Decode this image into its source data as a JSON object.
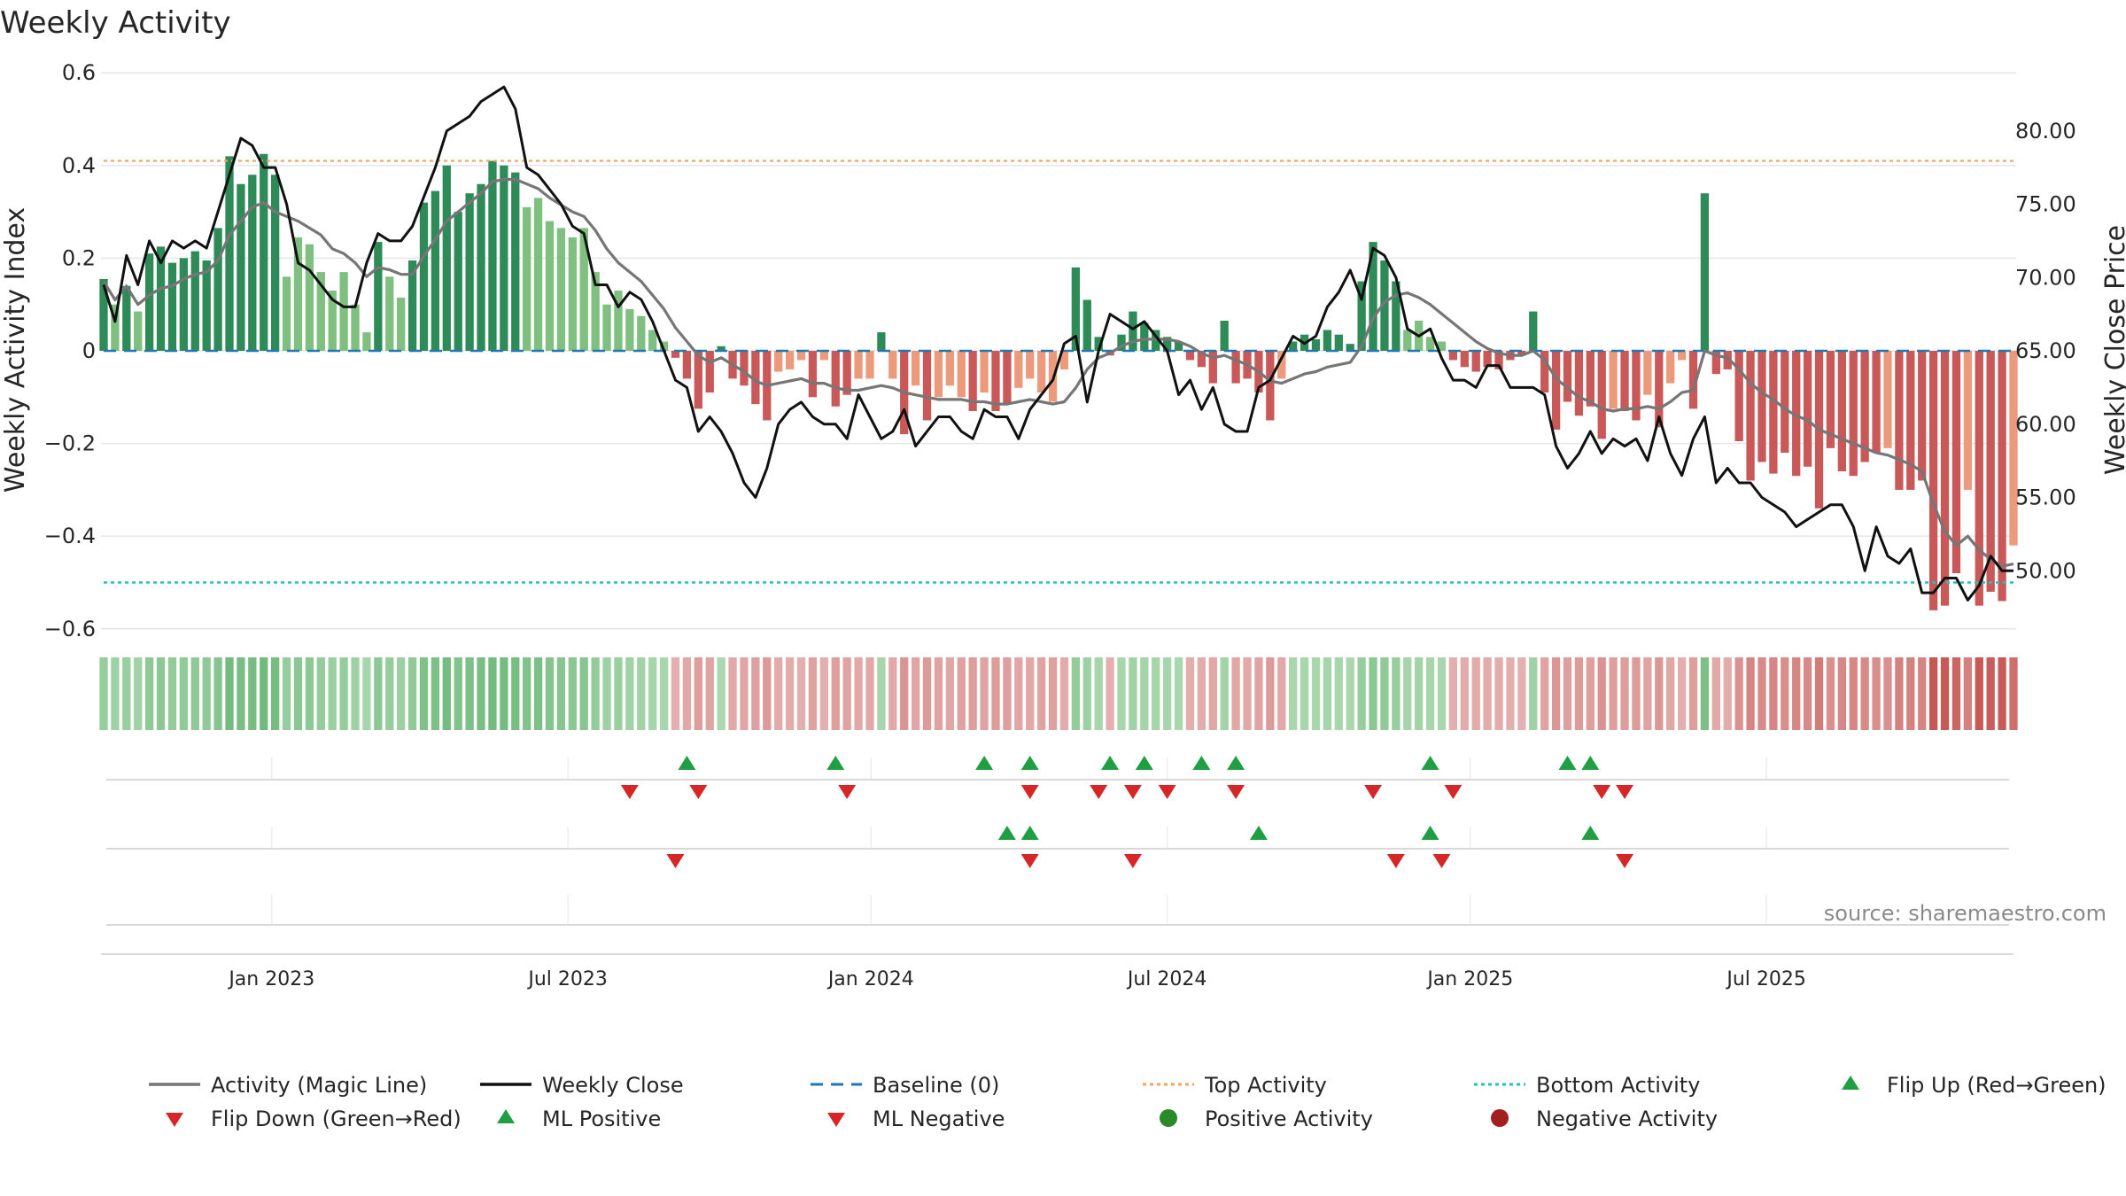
{
  "chart_data": {
    "type": "bar+line",
    "title": "Weekly Activity",
    "ylabel_left": "Weekly Activity Index",
    "ylabel_right": "Weekly Close Price",
    "ylim_left": [
      -0.66,
      0.62
    ],
    "ylim_right": [
      46.5,
      84.5
    ],
    "yticks_left": [
      0.6,
      0.4,
      0.2,
      0,
      -0.2,
      -0.4,
      -0.6
    ],
    "ytick_labels_left": [
      "0.6",
      "0.4",
      "0.2",
      "0",
      "−0.2",
      "−0.4",
      "−0.6"
    ],
    "yticks_right": [
      80,
      75,
      70,
      65,
      60,
      55,
      50
    ],
    "ytick_labels_right": [
      "80.00",
      "75.00",
      "70.00",
      "65.00",
      "60.00",
      "55.00",
      "50.00"
    ],
    "xticks": [
      {
        "label": "Jan 2023",
        "week": 14.7
      },
      {
        "label": "Jul 2023",
        "week": 40.6
      },
      {
        "label": "Jan 2024",
        "week": 67.1
      },
      {
        "label": "Jul 2024",
        "week": 93.0
      },
      {
        "label": "Jan 2025",
        "week": 119.5
      },
      {
        "label": "Jul 2025",
        "week": 145.4
      }
    ],
    "top_activity": 0.41,
    "bottom_activity": -0.5,
    "activity": [
      0.155,
      0.1,
      0.14,
      0.085,
      0.21,
      0.225,
      0.19,
      0.2,
      0.215,
      0.195,
      0.265,
      0.42,
      0.36,
      0.38,
      0.425,
      0.38,
      0.16,
      0.245,
      0.23,
      0.17,
      0.13,
      0.17,
      0.1,
      0.04,
      0.235,
      0.16,
      0.115,
      0.195,
      0.32,
      0.345,
      0.4,
      0.3,
      0.34,
      0.36,
      0.41,
      0.4,
      0.385,
      0.31,
      0.33,
      0.28,
      0.265,
      0.245,
      0.265,
      0.17,
      0.1,
      0.13,
      0.09,
      0.075,
      0.045,
      0.02,
      -0.015,
      -0.06,
      -0.125,
      -0.09,
      0.01,
      -0.06,
      -0.075,
      -0.115,
      -0.15,
      -0.045,
      -0.04,
      -0.02,
      -0.1,
      -0.02,
      -0.12,
      -0.095,
      -0.06,
      -0.06,
      0.04,
      -0.06,
      -0.18,
      -0.075,
      -0.15,
      -0.1,
      -0.075,
      -0.1,
      -0.13,
      -0.09,
      -0.13,
      -0.115,
      -0.08,
      -0.06,
      -0.09,
      -0.11,
      -0.04,
      0.18,
      0.11,
      0.03,
      -0.01,
      0.035,
      0.085,
      0.06,
      0.045,
      0.03,
      0.02,
      -0.02,
      -0.035,
      -0.07,
      0.065,
      -0.07,
      -0.06,
      -0.09,
      -0.15,
      -0.06,
      0.02,
      0.035,
      0.025,
      0.045,
      0.035,
      0.015,
      0.15,
      0.235,
      0.195,
      0.15,
      0.045,
      0.065,
      0.03,
      0.02,
      -0.02,
      -0.035,
      -0.045,
      -0.035,
      -0.04,
      -0.02,
      -0.01,
      0.085,
      -0.09,
      -0.17,
      -0.11,
      -0.14,
      -0.12,
      -0.19,
      -0.125,
      -0.13,
      -0.15,
      -0.095,
      -0.165,
      -0.07,
      -0.02,
      -0.125,
      0.34,
      -0.05,
      -0.04,
      -0.195,
      -0.28,
      -0.24,
      -0.265,
      -0.22,
      -0.27,
      -0.25,
      -0.34,
      -0.21,
      -0.26,
      -0.27,
      -0.24,
      -0.22,
      -0.21,
      -0.3,
      -0.3,
      -0.28,
      -0.56,
      -0.55,
      -0.48,
      -0.3,
      -0.55,
      -0.52,
      -0.54,
      -0.42
    ],
    "activity_ml": [
      0.15,
      0.11,
      0.14,
      0.1,
      0.12,
      0.135,
      0.14,
      0.155,
      0.165,
      0.17,
      0.195,
      0.25,
      0.28,
      0.31,
      0.32,
      0.3,
      0.29,
      0.28,
      0.265,
      0.25,
      0.22,
      0.21,
      0.19,
      0.16,
      0.18,
      0.175,
      0.165,
      0.165,
      0.205,
      0.24,
      0.28,
      0.3,
      0.32,
      0.34,
      0.365,
      0.37,
      0.37,
      0.36,
      0.35,
      0.33,
      0.315,
      0.3,
      0.29,
      0.26,
      0.22,
      0.19,
      0.17,
      0.15,
      0.12,
      0.09,
      0.05,
      0.02,
      -0.01,
      -0.025,
      -0.015,
      -0.03,
      -0.045,
      -0.065,
      -0.075,
      -0.07,
      -0.065,
      -0.06,
      -0.07,
      -0.07,
      -0.08,
      -0.085,
      -0.085,
      -0.08,
      -0.075,
      -0.08,
      -0.09,
      -0.095,
      -0.1,
      -0.105,
      -0.105,
      -0.105,
      -0.11,
      -0.11,
      -0.115,
      -0.115,
      -0.11,
      -0.105,
      -0.11,
      -0.115,
      -0.11,
      -0.08,
      -0.04,
      -0.015,
      -0.005,
      0.01,
      0.02,
      0.025,
      0.025,
      0.025,
      0.02,
      0.01,
      -0.005,
      -0.015,
      -0.01,
      -0.02,
      -0.03,
      -0.045,
      -0.065,
      -0.07,
      -0.06,
      -0.05,
      -0.045,
      -0.035,
      -0.03,
      -0.025,
      0.01,
      0.07,
      0.105,
      0.12,
      0.125,
      0.115,
      0.1,
      0.08,
      0.06,
      0.04,
      0.02,
      0.005,
      -0.005,
      -0.01,
      -0.01,
      0.0,
      -0.02,
      -0.06,
      -0.08,
      -0.1,
      -0.11,
      -0.125,
      -0.13,
      -0.125,
      -0.125,
      -0.12,
      -0.125,
      -0.11,
      -0.09,
      -0.085,
      0.0,
      -0.01,
      -0.015,
      -0.04,
      -0.07,
      -0.09,
      -0.105,
      -0.125,
      -0.14,
      -0.15,
      -0.17,
      -0.18,
      -0.19,
      -0.2,
      -0.21,
      -0.22,
      -0.225,
      -0.235,
      -0.245,
      -0.26,
      -0.33,
      -0.39,
      -0.42,
      -0.4,
      -0.43,
      -0.45,
      -0.465,
      -0.46
    ],
    "close": [
      69.5,
      67.0,
      71.5,
      69.5,
      72.5,
      71.0,
      72.5,
      72.0,
      72.5,
      72.0,
      74.5,
      77.0,
      79.5,
      79.0,
      77.5,
      77.5,
      75.0,
      71.0,
      70.5,
      69.5,
      68.5,
      68.0,
      68.0,
      71.0,
      73.0,
      72.5,
      72.5,
      73.5,
      75.5,
      77.5,
      80.0,
      80.5,
      81.0,
      82.0,
      82.5,
      83.0,
      81.5,
      77.5,
      77.0,
      76.0,
      75.0,
      73.5,
      73.0,
      69.5,
      69.5,
      68.0,
      69.0,
      68.5,
      67.0,
      65.0,
      63.0,
      62.5,
      59.5,
      60.5,
      59.5,
      58.0,
      56.0,
      55.0,
      57.0,
      60.0,
      61.0,
      61.5,
      60.5,
      60.0,
      60.0,
      59.0,
      62.0,
      60.5,
      59.0,
      59.5,
      61.0,
      58.5,
      59.5,
      60.5,
      60.5,
      59.5,
      59.0,
      61.0,
      60.5,
      60.5,
      59.0,
      61.0,
      62.0,
      63.0,
      65.5,
      66.0,
      61.5,
      65.0,
      67.5,
      67.0,
      66.5,
      67.0,
      66.0,
      65.0,
      62.0,
      63.0,
      61.0,
      62.5,
      60.0,
      59.5,
      59.5,
      62.5,
      63.0,
      64.5,
      66.0,
      65.5,
      66.0,
      68.0,
      69.0,
      70.5,
      68.5,
      72.0,
      71.5,
      70.0,
      66.5,
      66.0,
      66.5,
      64.5,
      63.0,
      63.0,
      62.5,
      64.0,
      64.0,
      62.5,
      62.5,
      62.5,
      62.0,
      58.5,
      57.0,
      58.0,
      59.5,
      58.0,
      59.0,
      58.5,
      59.0,
      57.5,
      60.5,
      58.0,
      56.5,
      59.0,
      60.5,
      56.0,
      57.0,
      56.0,
      56.0,
      55.0,
      54.5,
      54.0,
      53.0,
      53.5,
      54.0,
      54.5,
      54.5,
      53.0,
      50.0,
      53.0,
      51.0,
      50.5,
      51.5,
      48.5,
      48.5,
      49.5,
      49.5,
      48.0,
      49.0,
      51.0,
      50.0,
      50.0
    ],
    "heat_strip": "per-week activity shade (green = positive, red = negative)",
    "flip_up_weeks": [
      51,
      64,
      77,
      81,
      88,
      91,
      96,
      99,
      116,
      128,
      130
    ],
    "flip_down_weeks": [
      46,
      52,
      65,
      81,
      87,
      90,
      93,
      99,
      111,
      118,
      131,
      133
    ],
    "ml_positive_weeks": [
      79,
      81,
      101,
      116,
      130
    ],
    "ml_negative_weeks": [
      50,
      81,
      90,
      113,
      117,
      133
    ],
    "positive_activity_weeks": [],
    "negative_activity_weeks": [],
    "source_note": "source: sharemaestro.com",
    "legend": [
      {
        "label": "Activity (Magic Line)",
        "marker": "line",
        "color": "#767676"
      },
      {
        "label": "Weekly Close",
        "marker": "line",
        "color": "#111111"
      },
      {
        "label": "Baseline (0)",
        "marker": "dashed",
        "color": "#1f77b4"
      },
      {
        "label": "Top Activity",
        "marker": "dotted",
        "color": "#f4a460"
      },
      {
        "label": "Bottom Activity",
        "marker": "dotted",
        "color": "#20c0c8"
      },
      {
        "label": "Flip Up (Red→Green)",
        "marker": "triangle-up",
        "color": "#1f9e44"
      },
      {
        "label": "Flip Down (Green→Red)",
        "marker": "triangle-down",
        "color": "#d62728"
      },
      {
        "label": "ML Positive",
        "marker": "triangle-up",
        "color": "#1f9e44"
      },
      {
        "label": "ML Negative",
        "marker": "triangle-down",
        "color": "#d62728"
      },
      {
        "label": "Positive Activity",
        "marker": "circle",
        "color": "#2a8a2a"
      },
      {
        "label": "Negative Activity",
        "marker": "circle",
        "color": "#a31f1f"
      }
    ],
    "colors": {
      "dark_green": "#2e8b57",
      "light_green": "#7fbf7f",
      "dark_red": "#c95858",
      "light_red": "#eb9a7c",
      "grid": "#e6e6e6"
    }
  }
}
